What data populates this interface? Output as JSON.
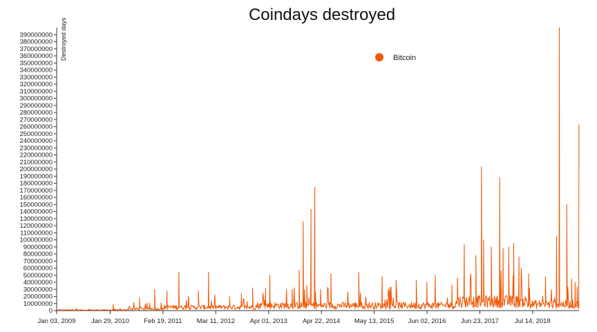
{
  "chart_data": {
    "type": "line",
    "title": "Coindays destroyed",
    "ylabel": "Destroyed days",
    "xlabel": "",
    "ylim": [
      0,
      400000000
    ],
    "y_ticks": [
      "0",
      "10000000",
      "20000000",
      "30000000",
      "40000000",
      "50000000",
      "60000000",
      "70000000",
      "80000000",
      "90000000",
      "100000000",
      "110000000",
      "120000000",
      "130000000",
      "140000000",
      "150000000",
      "160000000",
      "170000000",
      "180000000",
      "190000000",
      "200000000",
      "210000000",
      "220000000",
      "230000000",
      "240000000",
      "250000000",
      "260000000",
      "270000000",
      "280000000",
      "290000000",
      "300000000",
      "310000000",
      "320000000",
      "330000000",
      "340000000",
      "350000000",
      "360000000",
      "370000000",
      "380000000",
      "390000000"
    ],
    "x_ticks": [
      "Jan 03, 2009",
      "Jan 29, 2010",
      "Feb 19, 2011",
      "Mar 11, 2012",
      "Apr 01, 2013",
      "Apr 22, 2014",
      "May 13, 2015",
      "Jun 02, 2016",
      "Jun 23, 2017",
      "Jul 14, 2018"
    ],
    "x_range": [
      "2009-01-03",
      "2019-06-18"
    ],
    "legend_position": "top-center",
    "grid": false,
    "series": [
      {
        "name": "Bitcoin",
        "color": "#F15A0A",
        "base_noise": [
          {
            "from": "2009-01-03",
            "to": "2010-06-01",
            "level": 1000000
          },
          {
            "from": "2010-06-01",
            "to": "2011-03-01",
            "level": 3000000
          },
          {
            "from": "2011-03-01",
            "to": "2013-01-01",
            "level": 6000000
          },
          {
            "from": "2013-01-01",
            "to": "2016-12-31",
            "level": 9000000
          },
          {
            "from": "2017-01-01",
            "to": "2018-06-01",
            "level": 16000000
          },
          {
            "from": "2018-06-01",
            "to": "2019-06-18",
            "level": 11000000
          }
        ],
        "peaks": [
          {
            "date": "2010-02-20",
            "value": 9000000
          },
          {
            "date": "2010-09-01",
            "value": 18000000
          },
          {
            "date": "2010-12-20",
            "value": 30000000
          },
          {
            "date": "2011-03-20",
            "value": 28000000
          },
          {
            "date": "2011-06-15",
            "value": 54000000
          },
          {
            "date": "2011-11-05",
            "value": 28000000
          },
          {
            "date": "2012-01-18",
            "value": 54000000
          },
          {
            "date": "2012-06-20",
            "value": 20000000
          },
          {
            "date": "2012-09-15",
            "value": 24000000
          },
          {
            "date": "2012-12-05",
            "value": 32000000
          },
          {
            "date": "2013-03-10",
            "value": 32000000
          },
          {
            "date": "2013-04-10",
            "value": 50000000
          },
          {
            "date": "2013-09-20",
            "value": 30000000
          },
          {
            "date": "2013-11-10",
            "value": 57000000
          },
          {
            "date": "2013-12-10",
            "value": 126000000
          },
          {
            "date": "2014-01-05",
            "value": 36000000
          },
          {
            "date": "2014-02-05",
            "value": 143000000
          },
          {
            "date": "2014-03-05",
            "value": 174000000
          },
          {
            "date": "2014-04-15",
            "value": 30000000
          },
          {
            "date": "2014-07-01",
            "value": 52000000
          },
          {
            "date": "2015-01-20",
            "value": 54000000
          },
          {
            "date": "2015-07-10",
            "value": 48000000
          },
          {
            "date": "2015-10-20",
            "value": 43000000
          },
          {
            "date": "2016-03-15",
            "value": 43000000
          },
          {
            "date": "2016-06-01",
            "value": 40000000
          },
          {
            "date": "2016-08-01",
            "value": 50000000
          },
          {
            "date": "2016-12-01",
            "value": 36000000
          },
          {
            "date": "2017-01-10",
            "value": 46000000
          },
          {
            "date": "2017-03-01",
            "value": 93000000
          },
          {
            "date": "2017-05-25",
            "value": 78000000
          },
          {
            "date": "2017-07-05",
            "value": 203000000
          },
          {
            "date": "2017-07-20",
            "value": 100000000
          },
          {
            "date": "2017-09-15",
            "value": 90000000
          },
          {
            "date": "2017-11-15",
            "value": 188000000
          },
          {
            "date": "2017-12-10",
            "value": 88000000
          },
          {
            "date": "2018-01-20",
            "value": 90000000
          },
          {
            "date": "2018-02-25",
            "value": 95000000
          },
          {
            "date": "2018-04-05",
            "value": 76000000
          },
          {
            "date": "2018-06-15",
            "value": 52000000
          },
          {
            "date": "2018-10-15",
            "value": 48000000
          },
          {
            "date": "2019-01-05",
            "value": 105000000
          },
          {
            "date": "2019-01-25",
            "value": 400000000
          },
          {
            "date": "2019-03-20",
            "value": 150000000
          },
          {
            "date": "2019-04-25",
            "value": 45000000
          },
          {
            "date": "2019-05-20",
            "value": 40000000
          },
          {
            "date": "2019-06-05",
            "value": 34000000
          },
          {
            "date": "2019-06-17",
            "value": 263000000
          }
        ]
      }
    ]
  }
}
